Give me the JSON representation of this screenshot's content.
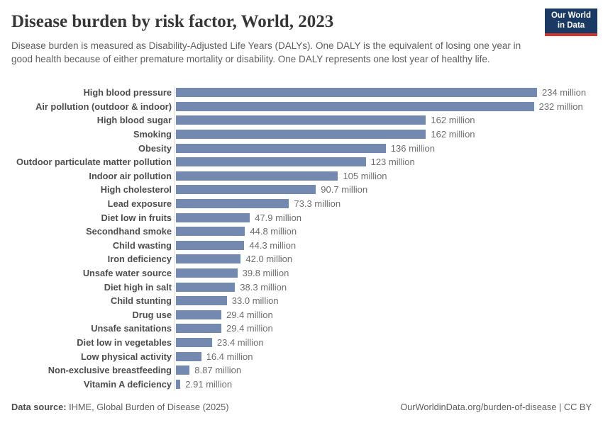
{
  "header": {
    "title": "Disease burden by risk factor, World, 2023",
    "subtitle": "Disease burden is measured as Disability-Adjusted Life Years (DALYs). One DALY is the equivalent of losing one year in good health because of either premature mortality or disability. One DALY represents one lost year of healthy life."
  },
  "logo": {
    "line1": "Our World",
    "line2": "in Data",
    "bg_color": "#1a3a63",
    "accent_color": "#d0342e"
  },
  "footer": {
    "source_label": "Data source:",
    "source_text": " IHME, Global Burden of Disease (2025)",
    "right_text": "OurWorldinData.org/burden-of-disease | CC BY"
  },
  "chart_data": {
    "type": "bar",
    "orientation": "horizontal",
    "title": "Disease burden by risk factor, World, 2023",
    "values_unit": "million DALYs",
    "categories": [
      "High blood pressure",
      "Air pollution (outdoor & indoor)",
      "High blood sugar",
      "Smoking",
      "Obesity",
      "Outdoor particulate matter pollution",
      "Indoor air pollution",
      "High cholesterol",
      "Lead exposure",
      "Diet low in fruits",
      "Secondhand smoke",
      "Child wasting",
      "Iron deficiency",
      "Unsafe water source",
      "Diet high in salt",
      "Child stunting",
      "Drug use",
      "Unsafe sanitations",
      "Diet low in vegetables",
      "Low physical activity",
      "Non-exclusive breastfeeding",
      "Vitamin A deficiency"
    ],
    "values": [
      234,
      232,
      162,
      162,
      136,
      123,
      105,
      90.7,
      73.3,
      47.9,
      44.8,
      44.3,
      42.0,
      39.8,
      38.3,
      33.0,
      29.4,
      29.4,
      23.4,
      16.4,
      8.87,
      2.91
    ],
    "value_labels": [
      "234 million",
      "232 million",
      "162 million",
      "162 million",
      "136 million",
      "123 million",
      "105 million",
      "90.7 million",
      "73.3 million",
      "47.9 million",
      "44.8 million",
      "44.3 million",
      "42.0 million",
      "39.8 million",
      "38.3 million",
      "33.0 million",
      "29.4 million",
      "29.4 million",
      "23.4 million",
      "16.4 million",
      "8.87 million",
      "2.91 million"
    ],
    "xlabel": "",
    "ylabel": "",
    "xlim": [
      0,
      234
    ],
    "grid": false,
    "legend": false,
    "bar_color": "#7389b0",
    "axis_color": "#d9d9d9"
  }
}
